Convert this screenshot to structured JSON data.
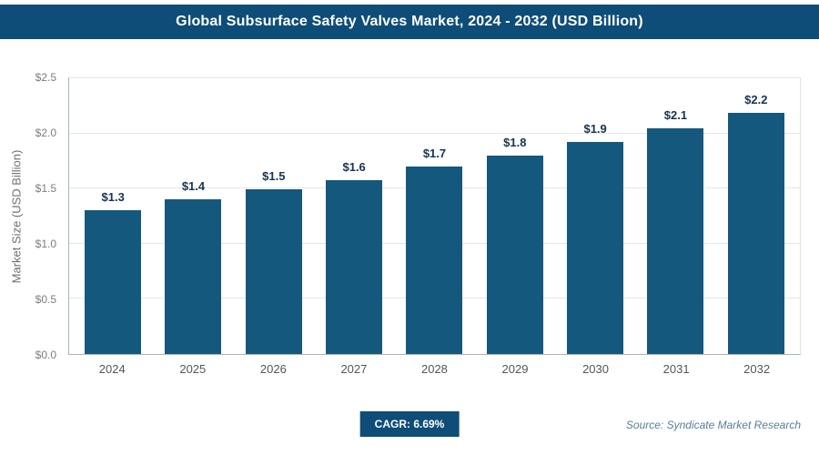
{
  "header": {
    "title": "Global Subsurface Safety Valves Market, 2024 - 2032 (USD Billion)"
  },
  "chart_data": {
    "type": "bar",
    "title": "Global Subsurface Safety Valves Market, 2024 - 2032 (USD Billion)",
    "categories": [
      "2024",
      "2025",
      "2026",
      "2027",
      "2028",
      "2029",
      "2030",
      "2031",
      "2032"
    ],
    "values": [
      1.3,
      1.4,
      1.49,
      1.58,
      1.7,
      1.8,
      1.92,
      2.05,
      2.19
    ],
    "value_labels": [
      "$1.3",
      "$1.4",
      "$1.5",
      "$1.6",
      "$1.7",
      "$1.8",
      "$1.9",
      "$2.1",
      "$2.2"
    ],
    "xlabel": "",
    "ylabel": "Market Size (USD Billion)",
    "ylim": [
      0,
      2.5
    ],
    "yticks": [
      0,
      0.5,
      1.0,
      1.5,
      2.0,
      2.5
    ],
    "ytick_labels": [
      "$0.0",
      "$0.5",
      "$1.0",
      "$1.5",
      "$2.0",
      "$2.5"
    ],
    "grid": true,
    "legend": "none",
    "bar_color": "#14587e"
  },
  "footer": {
    "cagr_label": "CAGR: 6.69%",
    "source": "Source: Syndicate Market Research"
  }
}
